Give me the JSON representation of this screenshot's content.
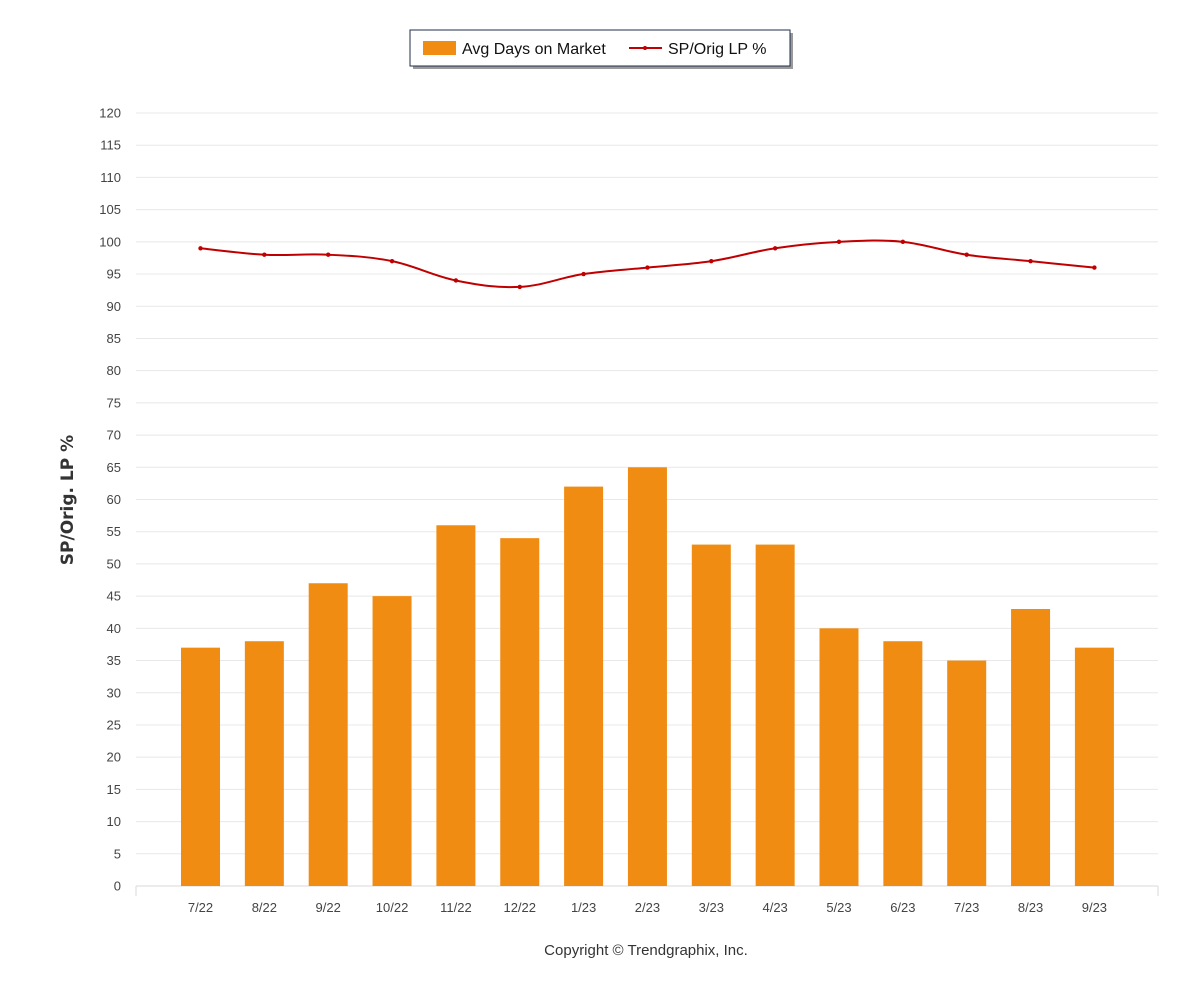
{
  "colors": {
    "bar": "#F08C12",
    "line": "#C00000",
    "grid": "#E8E8E8"
  },
  "copyright": "Copyright © Trendgraphix, Inc.",
  "chart_data": {
    "type": "bar",
    "categories": [
      "7/22",
      "8/22",
      "9/22",
      "10/22",
      "11/22",
      "12/22",
      "1/23",
      "2/23",
      "3/23",
      "4/23",
      "5/23",
      "6/23",
      "7/23",
      "8/23",
      "9/23"
    ],
    "series": [
      {
        "name": "Avg Days on Market",
        "type": "bar",
        "values": [
          37,
          38,
          47,
          45,
          56,
          54,
          62,
          65,
          53,
          53,
          40,
          38,
          35,
          43,
          37
        ]
      },
      {
        "name": "SP/Orig LP %",
        "type": "line",
        "values": [
          99,
          98,
          98,
          97,
          94,
          93,
          95,
          96,
          97,
          99,
          100,
          100,
          98,
          97,
          96
        ]
      }
    ],
    "ylabel": "SP/Orig. LP %",
    "ylim": [
      0,
      120
    ],
    "yticks": [
      0,
      5,
      10,
      15,
      20,
      25,
      30,
      35,
      40,
      45,
      50,
      55,
      60,
      65,
      70,
      75,
      80,
      85,
      90,
      95,
      100,
      105,
      110,
      115,
      120
    ],
    "grid": true,
    "legend": "top-center"
  }
}
